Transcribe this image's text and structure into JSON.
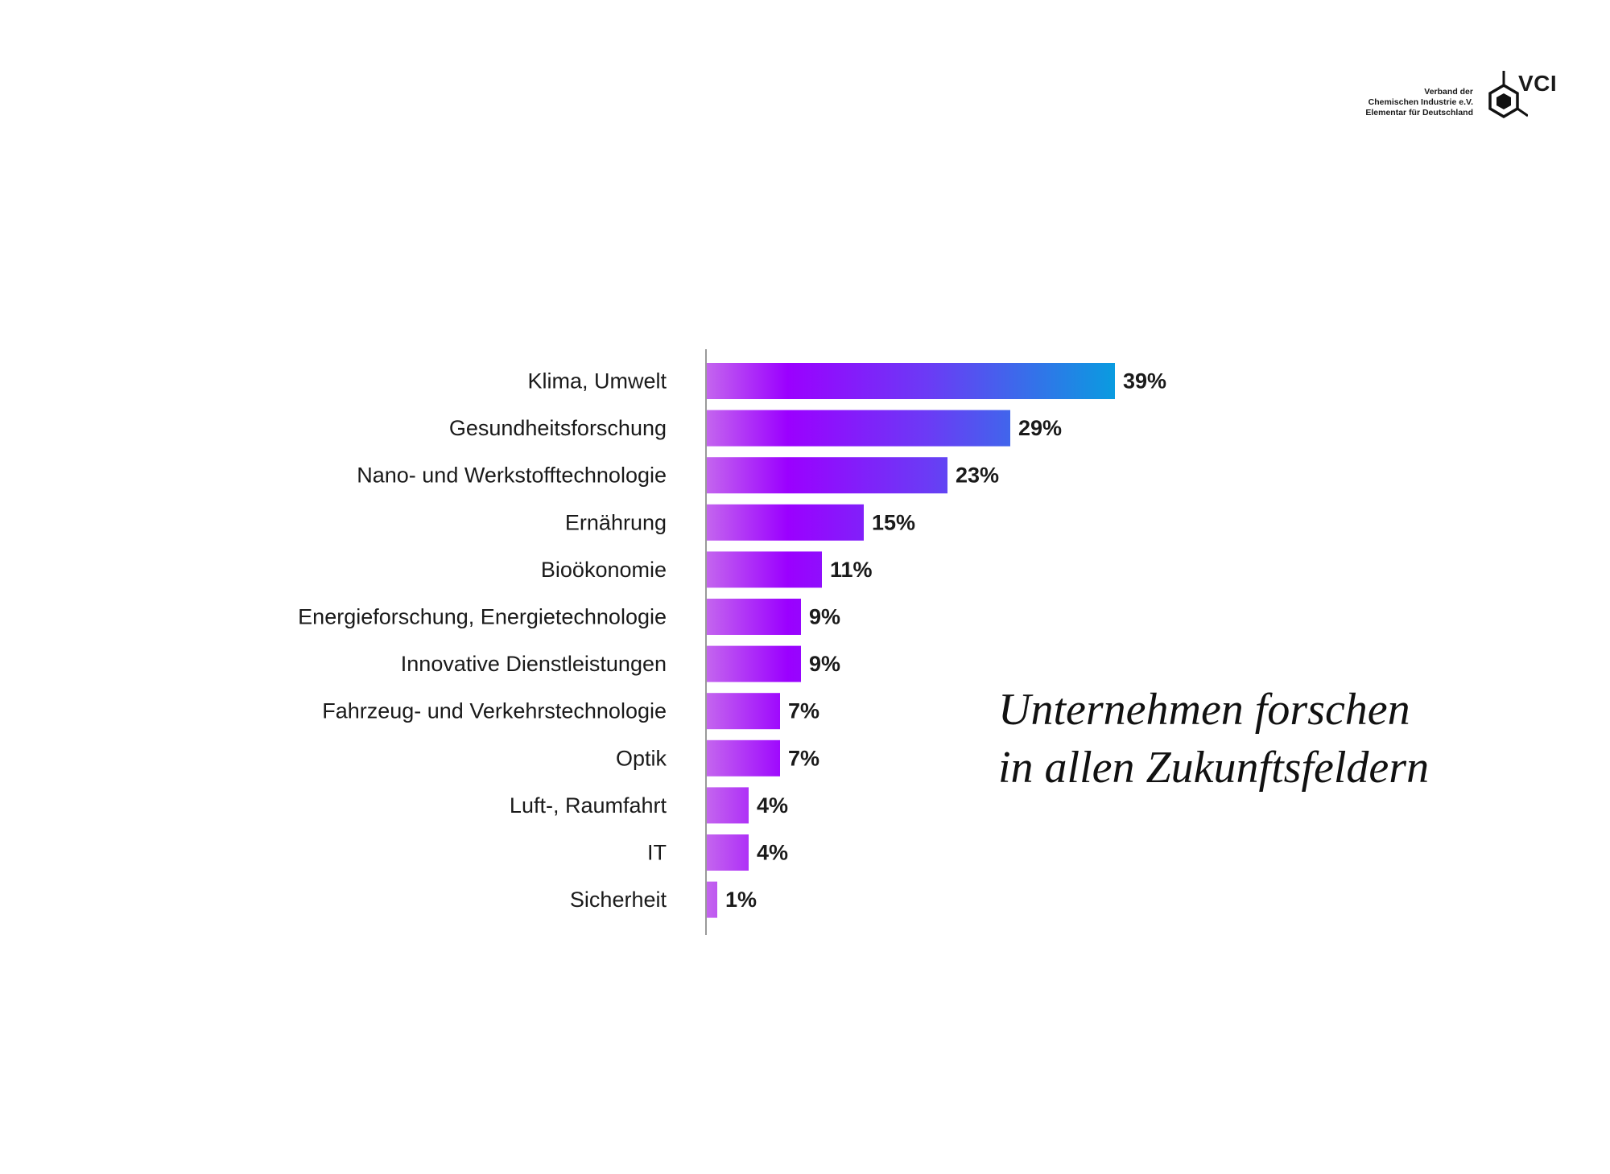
{
  "logo": {
    "line1": "Verband der",
    "line2": "Chemischen Industrie e.V.",
    "line3": "Elementar für Deutschland",
    "abbr": "VCI",
    "icon": "hexagon-molecule-icon"
  },
  "headline": {
    "line1": "Unternehmen forschen",
    "line2": "in allen Zukunftsfeldern"
  },
  "colors": {
    "bar_start": "#c466ee",
    "bar_mid": "#9b00ff",
    "bar_end": "#0a9be0",
    "axis": "#9a9a9a"
  },
  "chart_data": {
    "type": "bar",
    "orientation": "horizontal",
    "categories": [
      "Klima, Umwelt",
      "Gesundheitsforschung",
      "Nano- und Werkstofftechnologie",
      "Ernährung",
      "Bioökonomie",
      "Energieforschung, Energietechnologie",
      "Innovative Dienstleistungen",
      "Fahrzeug- und Verkehrstechnologie",
      "Optik",
      "Luft-, Raumfahrt",
      "IT",
      "Sicherheit"
    ],
    "values": [
      39,
      29,
      23,
      15,
      11,
      9,
      9,
      7,
      7,
      4,
      4,
      1
    ],
    "value_labels": [
      "39%",
      "29%",
      "23%",
      "15%",
      "11%",
      "9%",
      "9%",
      "7%",
      "7%",
      "4%",
      "4%",
      "1%"
    ],
    "unit": "%",
    "xlim": [
      0,
      39
    ],
    "title": "",
    "xlabel": "",
    "ylabel": "",
    "grid": false,
    "legend": "none"
  }
}
